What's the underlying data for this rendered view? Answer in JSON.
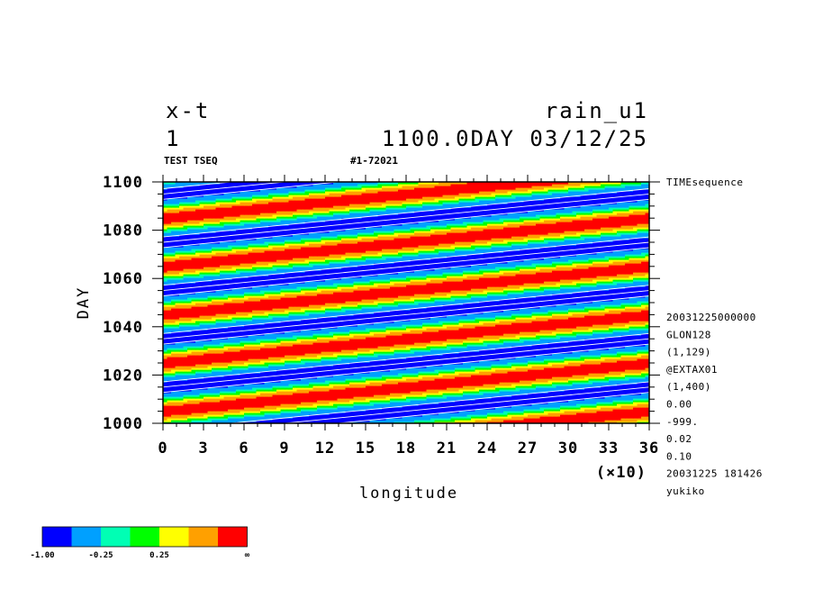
{
  "header": {
    "left_line1": "x-t",
    "left_line2": "1",
    "right_line1": "rain_u1",
    "right_line2": "1100.0DAY 03/12/25",
    "sub_left": "TEST TSEQ",
    "sub_mid": "#1-72021"
  },
  "side_info": {
    "top": "TIMEsequence",
    "lines": [
      "20031225000000",
      "GLON128",
      "(1,129)",
      "@EXTAX01",
      "(1,400)",
      "0.00",
      "-999.",
      "0.02",
      "0.10",
      "20031225 181426",
      "yukiko"
    ]
  },
  "colors": {
    "levels": [
      "#0000ff",
      "#00a0ff",
      "#00ffb4",
      "#00ff00",
      "#ffff00",
      "#ffa000",
      "#ff0000"
    ],
    "contour_negative": "#ffffff",
    "contour_positive": "#ff0000"
  },
  "colorbar": {
    "labels": [
      "-1.00",
      "-0.25",
      "0.25",
      "∞"
    ]
  },
  "chart_data": {
    "type": "heatmap",
    "title": "rain_u1",
    "xlabel": "longitude",
    "ylabel": "DAY",
    "x_multiplier_label": "(×10)",
    "xlim": [
      0,
      36
    ],
    "ylim": [
      1000,
      1100
    ],
    "x_ticks": [
      0,
      3,
      6,
      9,
      12,
      15,
      18,
      21,
      24,
      27,
      30,
      33,
      36
    ],
    "y_ticks": [
      1000,
      1020,
      1040,
      1060,
      1080,
      1100
    ],
    "color_levels": [
      -1.0,
      -0.25,
      0.25
    ],
    "pattern": {
      "description": "eastward-propagating sinusoidal bands",
      "period_days": 20,
      "phase_shift_days_per_360deg": 20
    }
  }
}
